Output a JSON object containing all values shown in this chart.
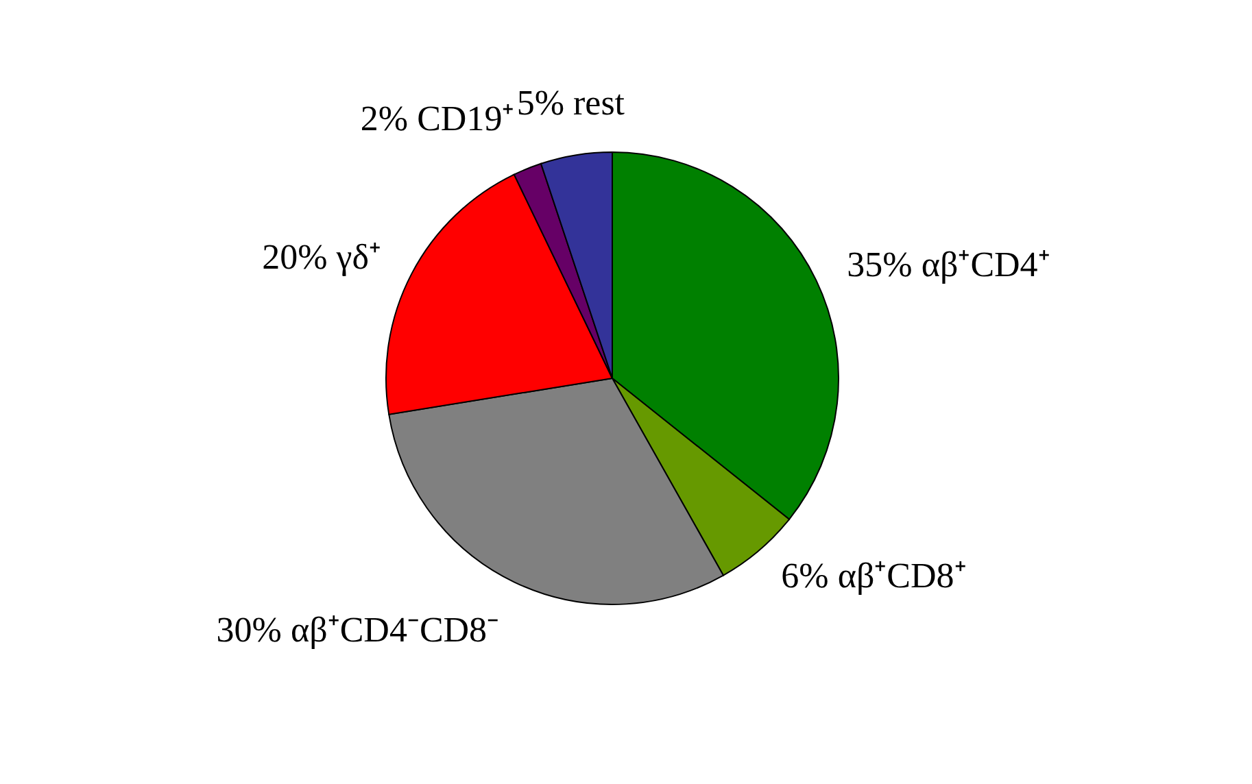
{
  "chart_data": {
    "type": "pie",
    "categories": [
      "αβ⁺CD4⁺",
      "αβ⁺CD8⁺",
      "αβ⁺CD4⁻CD8⁻",
      "γδ⁺",
      "CD19⁺",
      "rest"
    ],
    "values": [
      35,
      6,
      30,
      20,
      2,
      5
    ],
    "value_labels": [
      "35%",
      "6%",
      "30%",
      "20%",
      "2%",
      "5%"
    ],
    "colors": [
      "#008000",
      "#669900",
      "#808080",
      "#ff0000",
      "#660066",
      "#333399"
    ],
    "legend": false
  }
}
